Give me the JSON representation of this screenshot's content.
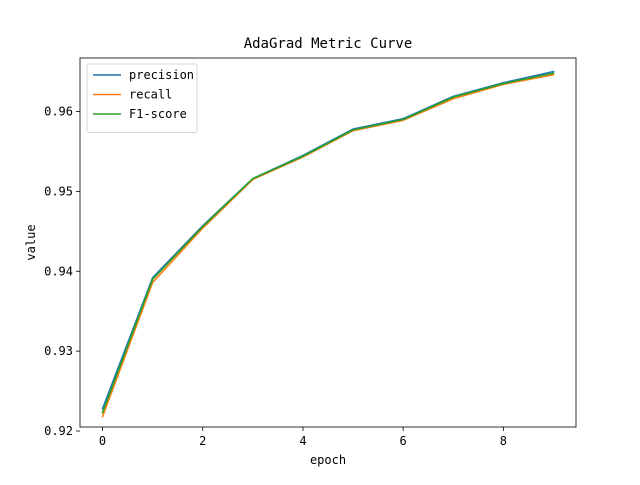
{
  "chart_data": {
    "type": "line",
    "title": "AdaGrad Metric Curve",
    "xlabel": "epoch",
    "ylabel": "value",
    "x": [
      0,
      1,
      2,
      3,
      4,
      5,
      6,
      7,
      8,
      9
    ],
    "xlim": [
      -0.45,
      9.45
    ],
    "ylim": [
      0.9205,
      0.9667
    ],
    "xticks": [
      0,
      2,
      4,
      6,
      8
    ],
    "yticks": [
      0.92,
      0.93,
      0.94,
      0.95,
      0.96
    ],
    "xtick_labels": [
      "0",
      "2",
      "4",
      "6",
      "8"
    ],
    "ytick_labels": [
      "0.92",
      "0.93",
      "0.94",
      "0.95",
      "0.96"
    ],
    "grid": false,
    "legend_position": "top-left",
    "series": [
      {
        "name": "precision",
        "color": "#1f77b4",
        "values": [
          0.9228,
          0.9392,
          0.9457,
          0.9516,
          0.9545,
          0.9578,
          0.9591,
          0.9619,
          0.9636,
          0.965
        ]
      },
      {
        "name": "recall",
        "color": "#ff7f0e",
        "values": [
          0.9218,
          0.9386,
          0.9454,
          0.9515,
          0.9543,
          0.9576,
          0.9589,
          0.9616,
          0.9634,
          0.9646
        ]
      },
      {
        "name": "F1-score",
        "color": "#2ca02c",
        "values": [
          0.9223,
          0.939,
          0.9456,
          0.9516,
          0.9544,
          0.9577,
          0.959,
          0.9618,
          0.9635,
          0.9648
        ]
      }
    ]
  }
}
